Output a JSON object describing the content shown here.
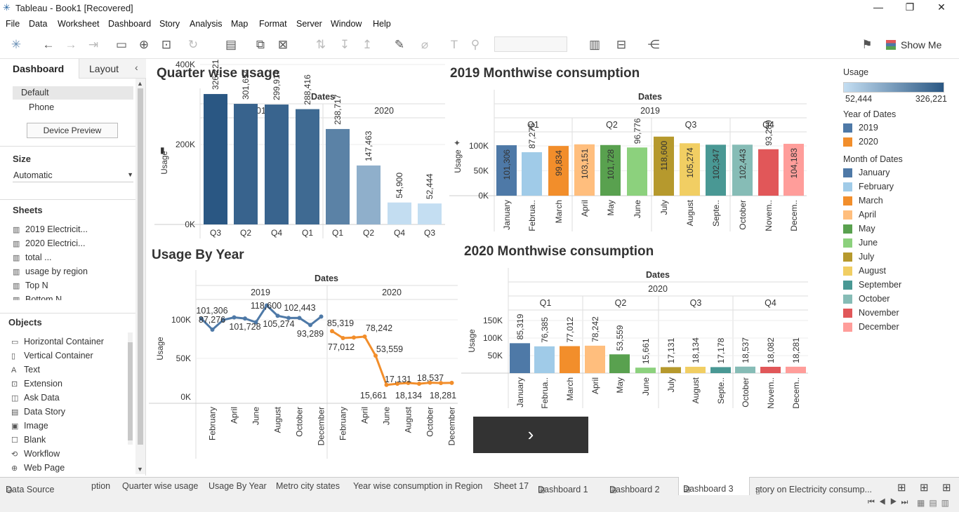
{
  "window": {
    "title": "Tableau - Book1 [Recovered]"
  },
  "menu": [
    "File",
    "Data",
    "Worksheet",
    "Dashboard",
    "Story",
    "Analysis",
    "Map",
    "Format",
    "Server",
    "Window",
    "Help"
  ],
  "toolbar": {
    "show_me": "Show Me"
  },
  "sidebar": {
    "tab_dashboard": "Dashboard",
    "tab_layout": "Layout",
    "device_default": "Default",
    "device_phone": "Phone",
    "device_preview": "Device Preview",
    "size_header": "Size",
    "size_value": "Automatic",
    "sheets_header": "Sheets",
    "sheets": [
      "2019 Electricit...",
      "2020 Electrici...",
      "total ...",
      "usage by region",
      "Top N",
      "Bottom N"
    ],
    "objects_header": "Objects",
    "objects": [
      {
        "label": "Horizontal Container",
        "icon": "horizontal-container-icon"
      },
      {
        "label": "Vertical Container",
        "icon": "vertical-container-icon"
      },
      {
        "label": "Text",
        "icon": "text-icon"
      },
      {
        "label": "Extension",
        "icon": "extension-icon"
      },
      {
        "label": "Ask Data",
        "icon": "ask-data-icon"
      },
      {
        "label": "Data Story",
        "icon": "data-story-icon"
      },
      {
        "label": "Image",
        "icon": "image-icon"
      },
      {
        "label": "Blank",
        "icon": "blank-icon"
      },
      {
        "label": "Workflow",
        "icon": "workflow-icon"
      },
      {
        "label": "Web Page",
        "icon": "web-page-icon"
      }
    ]
  },
  "legend": {
    "usage_title": "Usage",
    "usage_min": "52,444",
    "usage_max": "326,221",
    "year_title": "Year of Dates",
    "years": [
      {
        "label": "2019",
        "color": "#4e79a7"
      },
      {
        "label": "2020",
        "color": "#f28e2b"
      }
    ],
    "month_title": "Month of Dates",
    "months": [
      {
        "label": "January",
        "color": "#4e79a7"
      },
      {
        "label": "February",
        "color": "#a0cbe8"
      },
      {
        "label": "March",
        "color": "#f28e2b"
      },
      {
        "label": "April",
        "color": "#ffbe7d"
      },
      {
        "label": "May",
        "color": "#59a14f"
      },
      {
        "label": "June",
        "color": "#8cd17d"
      },
      {
        "label": "July",
        "color": "#b6992d"
      },
      {
        "label": "August",
        "color": "#f1ce63"
      },
      {
        "label": "September",
        "color": "#499894"
      },
      {
        "label": "October",
        "color": "#86bcb6"
      },
      {
        "label": "November",
        "color": "#e15759"
      },
      {
        "label": "December",
        "color": "#ff9d9a"
      }
    ]
  },
  "tabs": [
    "Data Source",
    "ption",
    "Quarter wise usage",
    "Usage By Year",
    "Metro city states",
    "Year wise consumption in Region",
    "Sheet 17",
    "Dashboard 1",
    "Dashboard 2",
    "Dashboard 3",
    "story on  Electricity consump..."
  ],
  "chart_data": [
    {
      "type": "bar",
      "title": "Quarter wise usage",
      "header": "Dates",
      "ylabel": "Usage",
      "ylim": [
        0,
        400000
      ],
      "yticks": [
        "0K",
        "200K",
        "400K"
      ],
      "groups": [
        {
          "year": "2019",
          "categories": [
            "Q3",
            "Q2",
            "Q4",
            "Q1"
          ],
          "values": [
            326221,
            301654,
            299914,
            288416
          ],
          "labels": [
            "326,221",
            "301,654",
            "299,914",
            "288,416"
          ]
        },
        {
          "year": "2020",
          "categories": [
            "Q1",
            "Q2",
            "Q4",
            "Q3"
          ],
          "values": [
            238717,
            147463,
            54900,
            52444
          ],
          "labels": [
            "238,717",
            "147,463",
            "54,900",
            "52,444"
          ]
        }
      ]
    },
    {
      "type": "bar",
      "title": "2019 Monthwise consumption",
      "header": "Dates",
      "year": "2019",
      "ylabel": "Usage",
      "ylim": [
        0,
        130000
      ],
      "yticks": [
        "0K",
        "50K",
        "100K"
      ],
      "quarters": [
        "Q1",
        "Q2",
        "Q3",
        "Q4"
      ],
      "categories": [
        "January",
        "Februa..",
        "March",
        "April",
        "May",
        "June",
        "July",
        "August",
        "Septe..",
        "October",
        "Novem..",
        "Decem.."
      ],
      "values": [
        101306,
        87276,
        99834,
        103151,
        101728,
        96776,
        118600,
        105274,
        102347,
        102443,
        93289,
        104183
      ],
      "labels": [
        "101,306",
        "87,276",
        "99,834",
        "103,151",
        "101,728",
        "96,776",
        "118,600",
        "105,274",
        "102,347",
        "102,443",
        "93,289",
        "104,183"
      ]
    },
    {
      "type": "line",
      "title": "Usage By Year",
      "header": "Dates",
      "ylabel": "Usage",
      "ylim": [
        0,
        130000
      ],
      "yticks": [
        "0K",
        "50K",
        "100K"
      ],
      "series": [
        {
          "name": "2019",
          "x": [
            "January",
            "February",
            "March",
            "April",
            "May",
            "June",
            "July",
            "August",
            "September",
            "October",
            "November",
            "December"
          ],
          "values": [
            101306,
            87276,
            99834,
            103151,
            101728,
            96776,
            118600,
            105274,
            102347,
            102443,
            93289,
            104183
          ],
          "labels": [
            "101,306",
            "87,276",
            "",
            "",
            "101,728",
            "",
            "118,600",
            "105,274",
            "",
            "102,443",
            "93,289",
            ""
          ]
        },
        {
          "name": "2020",
          "x": [
            "January",
            "February",
            "March",
            "April",
            "May",
            "June",
            "July",
            "August",
            "September",
            "October",
            "November",
            "December"
          ],
          "values": [
            85319,
            76385,
            77012,
            78242,
            53559,
            15661,
            17131,
            18134,
            17178,
            18537,
            18082,
            18281
          ],
          "labels": [
            "85,319",
            "",
            "77,012",
            "78,242",
            "53,559",
            "15,661",
            "17,131",
            "18,134",
            "",
            "18,537",
            "",
            "18,281"
          ]
        }
      ],
      "xticks": [
        "February",
        "April",
        "June",
        "August",
        "October",
        "December"
      ]
    },
    {
      "type": "bar",
      "title": "2020 Monthwise consumption",
      "header": "Dates",
      "year": "2020",
      "ylabel": "Usage",
      "ylim": [
        0,
        160000
      ],
      "yticks": [
        "50K",
        "100K",
        "150K"
      ],
      "quarters": [
        "Q1",
        "Q2",
        "Q3",
        "Q4"
      ],
      "categories": [
        "January",
        "Februa..",
        "March",
        "April",
        "May",
        "June",
        "July",
        "August",
        "Septe..",
        "October",
        "Novem..",
        "Decem.."
      ],
      "values": [
        85319,
        76385,
        77012,
        78242,
        53559,
        15661,
        17131,
        18134,
        17178,
        18537,
        18082,
        18281
      ],
      "labels": [
        "85,319",
        "76,385",
        "77,012",
        "78,242",
        "53,559",
        "15,661",
        "17,131",
        "18,134",
        "17,178",
        "18,537",
        "18,082",
        "18,281"
      ]
    }
  ]
}
